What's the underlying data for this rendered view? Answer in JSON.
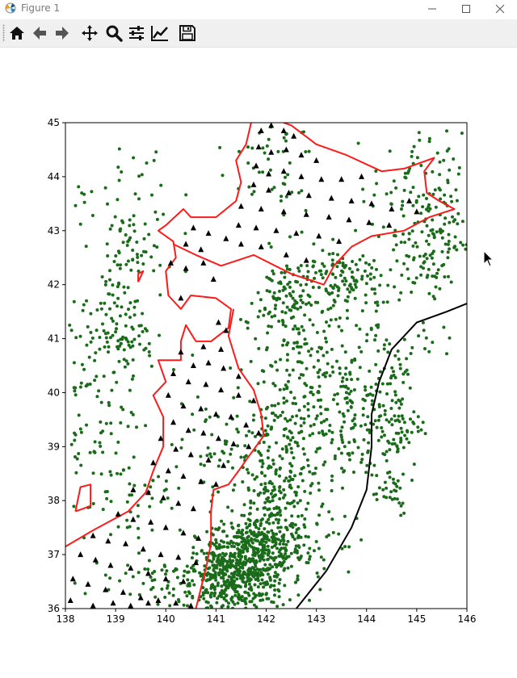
{
  "window": {
    "title": "Figure 1"
  },
  "toolbar": {
    "buttons": [
      {
        "name": "home-icon"
      },
      {
        "name": "back-icon"
      },
      {
        "name": "forward-icon"
      },
      {
        "name": "pan-icon"
      },
      {
        "name": "zoom-icon"
      },
      {
        "name": "subplots-icon"
      },
      {
        "name": "edit-axis-icon"
      },
      {
        "name": "save-icon"
      }
    ]
  },
  "chart_data": {
    "type": "scatter",
    "title": "",
    "xlabel": "",
    "ylabel": "",
    "xlim": [
      138,
      146
    ],
    "ylim": [
      36,
      45
    ],
    "xticks": [
      "138",
      "139",
      "140",
      "141",
      "142",
      "143",
      "144",
      "145",
      "146"
    ],
    "yticks": [
      "36",
      "37",
      "38",
      "39",
      "40",
      "41",
      "42",
      "43",
      "44",
      "45"
    ],
    "grid": false,
    "legend": "none",
    "colors": {
      "epicenters": "#1a6b1a",
      "stations": "#000000",
      "coastline": "#ff1a1a",
      "trench": "#000000"
    },
    "coastline": [
      [
        [
          141.7,
          45.0
        ],
        [
          141.6,
          44.6
        ],
        [
          141.4,
          44.3
        ],
        [
          141.5,
          43.9
        ],
        [
          141.4,
          43.55
        ],
        [
          141.0,
          43.25
        ],
        [
          140.5,
          43.25
        ],
        [
          140.35,
          43.4
        ],
        [
          140.0,
          43.1
        ],
        [
          139.85,
          43.0
        ],
        [
          140.15,
          42.8
        ],
        [
          140.2,
          42.5
        ],
        [
          140.0,
          42.25
        ],
        [
          140.05,
          41.8
        ],
        [
          140.3,
          41.55
        ],
        [
          140.5,
          41.8
        ],
        [
          141.0,
          41.75
        ],
        [
          141.3,
          41.55
        ],
        [
          141.25,
          41.2
        ],
        [
          140.9,
          40.95
        ],
        [
          140.6,
          40.95
        ],
        [
          140.4,
          41.25
        ],
        [
          140.3,
          40.95
        ],
        [
          140.3,
          40.6
        ],
        [
          139.85,
          40.6
        ],
        [
          140.0,
          40.2
        ],
        [
          139.75,
          39.95
        ],
        [
          139.95,
          39.55
        ],
        [
          139.95,
          39.0
        ],
        [
          139.75,
          38.55
        ],
        [
          139.6,
          38.15
        ],
        [
          139.25,
          37.8
        ],
        [
          138.55,
          37.45
        ],
        [
          138.0,
          37.15
        ]
      ],
      [
        [
          141.35,
          41.55
        ],
        [
          141.25,
          41.05
        ],
        [
          141.45,
          40.45
        ],
        [
          141.75,
          40.05
        ],
        [
          141.9,
          39.6
        ],
        [
          141.95,
          39.2
        ],
        [
          141.6,
          38.75
        ],
        [
          141.45,
          38.55
        ],
        [
          141.25,
          38.3
        ],
        [
          140.95,
          38.2
        ],
        [
          140.9,
          37.8
        ],
        [
          140.9,
          37.2
        ],
        [
          140.8,
          36.75
        ],
        [
          140.6,
          36.0
        ]
      ],
      [
        [
          140.15,
          42.75
        ],
        [
          140.6,
          42.55
        ],
        [
          141.1,
          42.35
        ],
        [
          141.75,
          42.55
        ],
        [
          142.5,
          42.2
        ],
        [
          143.15,
          42.0
        ],
        [
          143.35,
          42.35
        ],
        [
          143.7,
          42.7
        ],
        [
          144.1,
          42.9
        ],
        [
          144.75,
          43.0
        ],
        [
          145.25,
          43.25
        ],
        [
          145.75,
          43.4
        ],
        [
          145.45,
          43.55
        ],
        [
          145.2,
          43.7
        ],
        [
          145.15,
          44.1
        ],
        [
          145.35,
          44.35
        ],
        [
          144.75,
          44.15
        ],
        [
          144.3,
          44.1
        ],
        [
          143.6,
          44.4
        ],
        [
          143.0,
          44.6
        ],
        [
          142.5,
          44.95
        ],
        [
          142.35,
          45.0
        ]
      ],
      [
        [
          139.45,
          42.05
        ],
        [
          139.55,
          42.25
        ],
        [
          139.45,
          42.2
        ],
        [
          139.45,
          42.05
        ]
      ],
      [
        [
          138.2,
          37.8
        ],
        [
          138.5,
          37.9
        ],
        [
          138.5,
          38.3
        ],
        [
          138.3,
          38.25
        ],
        [
          138.2,
          37.8
        ]
      ]
    ],
    "trench": [
      [
        142.6,
        36.0
      ],
      [
        143.2,
        36.7
      ],
      [
        143.7,
        37.5
      ],
      [
        144.0,
        38.2
      ],
      [
        144.1,
        39.0
      ],
      [
        144.1,
        39.6
      ],
      [
        144.25,
        40.2
      ],
      [
        144.5,
        40.8
      ],
      [
        145.0,
        41.3
      ],
      [
        145.6,
        41.5
      ],
      [
        146.0,
        41.65
      ]
    ],
    "stations": [
      [
        141.9,
        44.85
      ],
      [
        142.1,
        44.95
      ],
      [
        142.35,
        44.85
      ],
      [
        142.55,
        44.75
      ],
      [
        141.85,
        44.55
      ],
      [
        142.1,
        44.45
      ],
      [
        142.4,
        44.5
      ],
      [
        142.7,
        44.4
      ],
      [
        143.0,
        44.3
      ],
      [
        141.8,
        44.2
      ],
      [
        142.05,
        44.05
      ],
      [
        142.35,
        44.1
      ],
      [
        142.7,
        44.0
      ],
      [
        143.1,
        43.95
      ],
      [
        143.5,
        43.95
      ],
      [
        143.9,
        44.0
      ],
      [
        141.75,
        43.85
      ],
      [
        142.05,
        43.75
      ],
      [
        142.45,
        43.7
      ],
      [
        142.85,
        43.65
      ],
      [
        143.3,
        43.6
      ],
      [
        143.7,
        43.55
      ],
      [
        144.1,
        43.5
      ],
      [
        144.5,
        43.4
      ],
      [
        144.85,
        43.55
      ],
      [
        145.0,
        43.35
      ],
      [
        141.5,
        43.45
      ],
      [
        141.9,
        43.4
      ],
      [
        142.35,
        43.35
      ],
      [
        142.8,
        43.3
      ],
      [
        143.25,
        43.25
      ],
      [
        143.65,
        43.2
      ],
      [
        144.05,
        43.15
      ],
      [
        144.45,
        43.1
      ],
      [
        141.45,
        43.1
      ],
      [
        141.8,
        43.05
      ],
      [
        142.2,
        43.0
      ],
      [
        142.6,
        42.95
      ],
      [
        143.05,
        42.9
      ],
      [
        143.45,
        42.8
      ],
      [
        140.55,
        43.05
      ],
      [
        140.85,
        42.95
      ],
      [
        141.2,
        42.85
      ],
      [
        140.4,
        42.75
      ],
      [
        140.7,
        42.65
      ],
      [
        141.5,
        42.75
      ],
      [
        141.9,
        42.7
      ],
      [
        142.4,
        42.55
      ],
      [
        142.8,
        42.45
      ],
      [
        140.1,
        42.4
      ],
      [
        140.4,
        42.3
      ],
      [
        140.75,
        42.4
      ],
      [
        140.95,
        42.1
      ],
      [
        140.3,
        41.75
      ],
      [
        141.05,
        41.3
      ],
      [
        141.2,
        41.15
      ],
      [
        140.75,
        40.85
      ],
      [
        141.1,
        40.8
      ],
      [
        140.3,
        40.75
      ],
      [
        140.55,
        40.5
      ],
      [
        140.85,
        40.55
      ],
      [
        141.15,
        40.45
      ],
      [
        141.45,
        40.3
      ],
      [
        140.15,
        40.35
      ],
      [
        140.45,
        40.2
      ],
      [
        140.8,
        40.15
      ],
      [
        141.1,
        40.05
      ],
      [
        141.45,
        39.95
      ],
      [
        141.75,
        39.85
      ],
      [
        140.05,
        39.95
      ],
      [
        140.35,
        39.75
      ],
      [
        140.7,
        39.7
      ],
      [
        141.0,
        39.6
      ],
      [
        141.3,
        39.55
      ],
      [
        141.6,
        39.4
      ],
      [
        141.85,
        39.25
      ],
      [
        140.15,
        39.45
      ],
      [
        140.45,
        39.3
      ],
      [
        140.75,
        39.25
      ],
      [
        141.05,
        39.15
      ],
      [
        141.35,
        39.05
      ],
      [
        141.65,
        39.0
      ],
      [
        139.9,
        39.15
      ],
      [
        140.2,
        38.95
      ],
      [
        140.5,
        38.85
      ],
      [
        140.85,
        38.75
      ],
      [
        141.15,
        38.65
      ],
      [
        139.75,
        38.7
      ],
      [
        140.05,
        38.55
      ],
      [
        140.35,
        38.45
      ],
      [
        140.7,
        38.35
      ],
      [
        141.0,
        38.3
      ],
      [
        139.35,
        38.2
      ],
      [
        139.65,
        38.15
      ],
      [
        139.95,
        38.05
      ],
      [
        140.25,
        37.95
      ],
      [
        140.55,
        37.85
      ],
      [
        139.05,
        37.75
      ],
      [
        139.35,
        37.65
      ],
      [
        139.7,
        37.6
      ],
      [
        140.0,
        37.5
      ],
      [
        140.35,
        37.4
      ],
      [
        140.65,
        37.3
      ],
      [
        138.55,
        37.35
      ],
      [
        138.85,
        37.25
      ],
      [
        139.2,
        37.2
      ],
      [
        139.55,
        37.1
      ],
      [
        139.9,
        37.0
      ],
      [
        140.25,
        36.95
      ],
      [
        140.6,
        36.85
      ],
      [
        138.3,
        37.0
      ],
      [
        138.6,
        36.9
      ],
      [
        138.9,
        36.8
      ],
      [
        139.3,
        36.75
      ],
      [
        139.65,
        36.65
      ],
      [
        140.0,
        36.55
      ],
      [
        140.35,
        36.5
      ],
      [
        138.15,
        36.55
      ],
      [
        138.45,
        36.45
      ],
      [
        138.8,
        36.35
      ],
      [
        139.15,
        36.3
      ],
      [
        139.5,
        36.2
      ],
      [
        139.85,
        36.15
      ],
      [
        140.2,
        36.1
      ],
      [
        140.5,
        36.05
      ],
      [
        138.1,
        36.15
      ],
      [
        138.55,
        36.05
      ],
      [
        138.95,
        36.1
      ],
      [
        139.3,
        36.05
      ],
      [
        139.65,
        36.1
      ]
    ],
    "epicenter_clusters": [
      {
        "lon": 141.85,
        "lat": 37.05,
        "sx": 0.45,
        "sy": 0.35,
        "n": 380
      },
      {
        "lon": 141.3,
        "lat": 36.35,
        "sx": 0.55,
        "sy": 0.3,
        "n": 280
      },
      {
        "lon": 142.1,
        "lat": 38.15,
        "sx": 0.4,
        "sy": 0.45,
        "n": 140
      },
      {
        "lon": 141.2,
        "lat": 36.9,
        "sx": 0.3,
        "sy": 0.3,
        "n": 120
      },
      {
        "lon": 142.3,
        "lat": 39.3,
        "sx": 0.5,
        "sy": 0.5,
        "n": 120
      },
      {
        "lon": 142.6,
        "lat": 40.6,
        "sx": 0.55,
        "sy": 0.6,
        "n": 110
      },
      {
        "lon": 142.7,
        "lat": 41.8,
        "sx": 0.55,
        "sy": 0.4,
        "n": 120
      },
      {
        "lon": 143.6,
        "lat": 42.1,
        "sx": 0.6,
        "sy": 0.35,
        "n": 110
      },
      {
        "lon": 145.3,
        "lat": 42.9,
        "sx": 0.45,
        "sy": 0.5,
        "n": 140
      },
      {
        "lon": 145.0,
        "lat": 43.9,
        "sx": 0.45,
        "sy": 0.45,
        "n": 60
      },
      {
        "lon": 144.5,
        "lat": 39.5,
        "sx": 0.3,
        "sy": 0.6,
        "n": 120
      },
      {
        "lon": 144.4,
        "lat": 38.2,
        "sx": 0.25,
        "sy": 0.25,
        "n": 25
      },
      {
        "lon": 143.7,
        "lat": 39.2,
        "sx": 0.35,
        "sy": 0.6,
        "n": 70
      },
      {
        "lon": 143.4,
        "lat": 40.2,
        "sx": 0.4,
        "sy": 0.6,
        "n": 70
      },
      {
        "lon": 139.2,
        "lat": 41.0,
        "sx": 0.3,
        "sy": 0.3,
        "n": 60
      },
      {
        "lon": 139.15,
        "lat": 42.35,
        "sx": 0.35,
        "sy": 0.5,
        "n": 70
      },
      {
        "lon": 138.6,
        "lat": 40.0,
        "sx": 0.4,
        "sy": 1.0,
        "n": 100
      },
      {
        "lon": 140.85,
        "lat": 39.0,
        "sx": 0.35,
        "sy": 0.4,
        "n": 40
      },
      {
        "lon": 139.2,
        "lat": 38.0,
        "sx": 0.6,
        "sy": 0.5,
        "n": 55
      },
      {
        "lon": 140.0,
        "lat": 36.5,
        "sx": 0.8,
        "sy": 0.25,
        "n": 70
      },
      {
        "lon": 142.0,
        "lat": 44.2,
        "sx": 0.5,
        "sy": 0.5,
        "n": 50
      },
      {
        "lon": 139.2,
        "lat": 43.6,
        "sx": 0.5,
        "sy": 0.8,
        "n": 45
      },
      {
        "lon": 142.8,
        "lat": 37.5,
        "sx": 0.5,
        "sy": 0.5,
        "n": 60
      },
      {
        "lon": 144.6,
        "lat": 41.0,
        "sx": 0.6,
        "sy": 0.5,
        "n": 50
      }
    ]
  }
}
